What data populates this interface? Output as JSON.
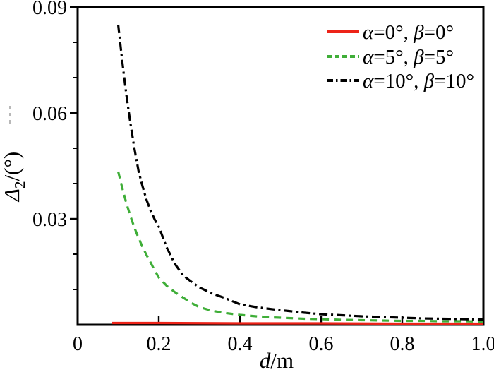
{
  "figure": {
    "background": "#ffffff",
    "frame_color": "#000000"
  },
  "chart_data": {
    "type": "line",
    "title": "",
    "xlabel": "d/m",
    "ylabel": "Δ2/(°)",
    "xlabel_parts": [
      [
        "d",
        "italic"
      ],
      [
        "/m",
        "normal"
      ]
    ],
    "ylabel_parts": [
      [
        "Δ",
        "italic"
      ],
      [
        "2",
        "sub"
      ],
      [
        "/(°)",
        "normal"
      ]
    ],
    "xlim": [
      0,
      1.0
    ],
    "ylim": [
      0,
      0.09
    ],
    "grid": false,
    "x_ticks": [
      {
        "v": 0,
        "label": "0"
      },
      {
        "v": 0.2,
        "label": "0.2"
      },
      {
        "v": 0.4,
        "label": "0.4"
      },
      {
        "v": 0.6,
        "label": "0.6"
      },
      {
        "v": 0.8,
        "label": "0.8"
      },
      {
        "v": 1.0,
        "label": "1.0"
      }
    ],
    "y_ticks": [
      {
        "v": 0.03,
        "label": "0.03"
      },
      {
        "v": 0.06,
        "label": "0.06"
      },
      {
        "v": 0.09,
        "label": "0.09"
      }
    ],
    "y_minor_step": 0.01,
    "legend": {
      "position": "top-right",
      "entries": [
        {
          "series": 0,
          "parts": [
            [
              "α",
              "italic"
            ],
            [
              "=0°, ",
              "normal"
            ],
            [
              "β",
              "italic"
            ],
            [
              "=0°",
              "normal"
            ]
          ]
        },
        {
          "series": 1,
          "parts": [
            [
              "α",
              "italic"
            ],
            [
              "=5°, ",
              "normal"
            ],
            [
              "β",
              "italic"
            ],
            [
              "=5°",
              "normal"
            ]
          ]
        },
        {
          "series": 2,
          "parts": [
            [
              "α",
              "italic"
            ],
            [
              "=10°, ",
              "normal"
            ],
            [
              "β",
              "italic"
            ],
            [
              "=10°",
              "normal"
            ]
          ]
        }
      ]
    },
    "series": [
      {
        "name": "α=0°, β=0°",
        "color": "#ed2318",
        "style": "solid",
        "x": [
          0.085,
          0.2,
          0.4,
          0.6,
          0.8,
          1.0
        ],
        "y": [
          0.0005,
          0.0005,
          0.0004,
          0.0004,
          0.0003,
          0.0003
        ]
      },
      {
        "name": "α=5°, β=5°",
        "color": "#3fae38",
        "style": "dashed",
        "x": [
          0.1,
          0.11,
          0.12,
          0.13,
          0.14,
          0.15,
          0.16,
          0.17,
          0.18,
          0.19,
          0.2,
          0.22,
          0.24,
          0.26,
          0.28,
          0.3,
          0.33,
          0.36,
          0.4,
          0.44,
          0.48,
          0.52,
          0.56,
          0.6,
          0.65,
          0.7,
          0.75,
          0.8,
          0.85,
          0.9,
          0.95,
          1.0
        ],
        "y": [
          0.0434,
          0.0387,
          0.0345,
          0.0308,
          0.0275,
          0.0246,
          0.022,
          0.0197,
          0.0176,
          0.0154,
          0.0134,
          0.011,
          0.0092,
          0.0077,
          0.0062,
          0.005,
          0.004,
          0.0034,
          0.0028,
          0.0024,
          0.0021,
          0.0019,
          0.0017,
          0.0016,
          0.0014,
          0.0013,
          0.0012,
          0.0011,
          0.0011,
          0.001,
          0.001,
          0.0009
        ]
      },
      {
        "name": "α=10°, β=10°",
        "color": "#000000",
        "style": "dashdot",
        "x": [
          0.1,
          0.11,
          0.12,
          0.13,
          0.14,
          0.15,
          0.16,
          0.17,
          0.18,
          0.19,
          0.2,
          0.22,
          0.24,
          0.26,
          0.28,
          0.3,
          0.33,
          0.36,
          0.4,
          0.44,
          0.48,
          0.52,
          0.56,
          0.6,
          0.65,
          0.7,
          0.75,
          0.8,
          0.85,
          0.9,
          0.95,
          1.0
        ],
        "y": [
          0.085,
          0.0745,
          0.0652,
          0.0571,
          0.0499,
          0.0436,
          0.0392,
          0.0353,
          0.0323,
          0.0298,
          0.0278,
          0.0218,
          0.0172,
          0.014,
          0.0122,
          0.0106,
          0.0089,
          0.0077,
          0.0058,
          0.005,
          0.0044,
          0.0039,
          0.0034,
          0.003,
          0.0027,
          0.0024,
          0.0022,
          0.002,
          0.0018,
          0.0017,
          0.0016,
          0.0015
        ]
      }
    ],
    "artifact": {
      "color": "#9b9b9b"
    }
  }
}
